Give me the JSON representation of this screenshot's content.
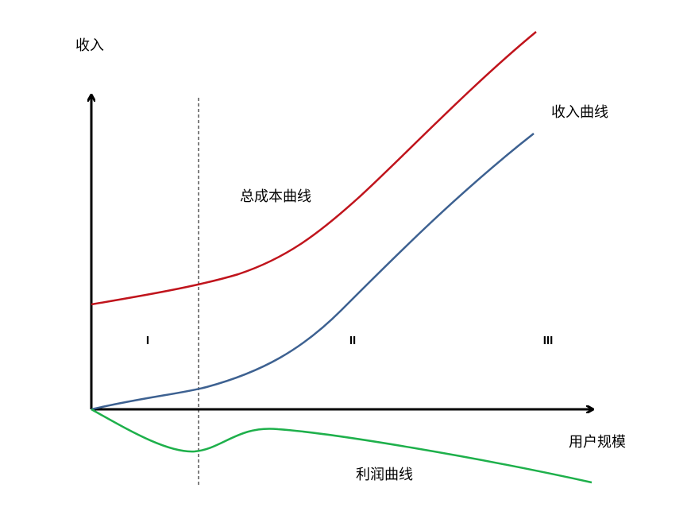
{
  "axes": {
    "y_label": "收入",
    "x_label": "用户规模"
  },
  "curves": [
    {
      "label": "总成本曲线"
    },
    {
      "label": "收入曲线"
    },
    {
      "label": "利润曲线"
    }
  ],
  "stages": [
    "I",
    "II",
    "III"
  ]
}
